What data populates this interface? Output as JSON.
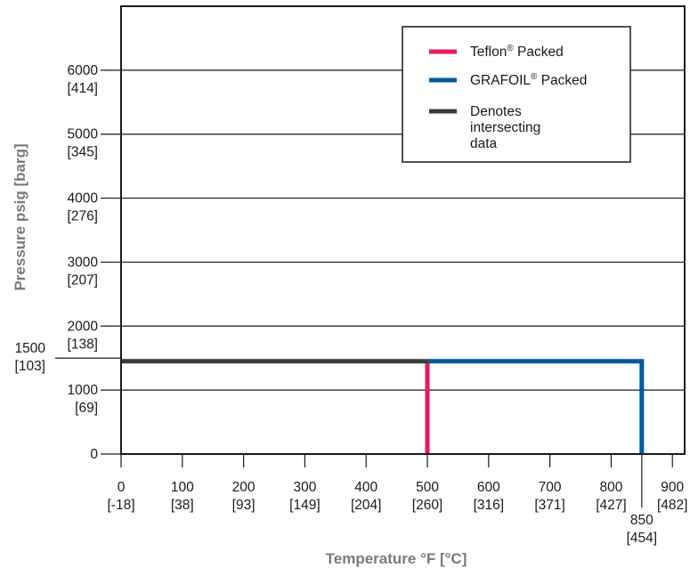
{
  "chart_data": {
    "type": "line",
    "xlabel": "Temperature °F [°C]",
    "ylabel": "Pressure psig [barg]",
    "xlim": [
      0,
      920
    ],
    "ylim": [
      0,
      7000
    ],
    "grid": "horizontal",
    "legend_position": "top-right",
    "x_ticks": [
      {
        "value": 0,
        "label": "0",
        "sub": "[-18]"
      },
      {
        "value": 100,
        "label": "100",
        "sub": "[38]"
      },
      {
        "value": 200,
        "label": "200",
        "sub": "[93]"
      },
      {
        "value": 300,
        "label": "300",
        "sub": "[149]"
      },
      {
        "value": 400,
        "label": "400",
        "sub": "[204]"
      },
      {
        "value": 500,
        "label": "500",
        "sub": "[260]"
      },
      {
        "value": 600,
        "label": "600",
        "sub": "[316]"
      },
      {
        "value": 700,
        "label": "700",
        "sub": "[371]"
      },
      {
        "value": 800,
        "label": "800",
        "sub": "[427]"
      },
      {
        "value": 900,
        "label": "900",
        "sub": "[482]"
      }
    ],
    "x_extra_tick": {
      "value": 850,
      "label": "850",
      "sub": "[454]"
    },
    "y_ticks": [
      {
        "value": 0,
        "label": "0",
        "sub": ""
      },
      {
        "value": 1000,
        "label": "1000",
        "sub": "[69]"
      },
      {
        "value": 2000,
        "label": "2000",
        "sub": "[138]"
      },
      {
        "value": 3000,
        "label": "3000",
        "sub": "[207]"
      },
      {
        "value": 4000,
        "label": "4000",
        "sub": "[276]"
      },
      {
        "value": 5000,
        "label": "5000",
        "sub": "[345]"
      },
      {
        "value": 6000,
        "label": "6000",
        "sub": "[414]"
      }
    ],
    "y_extra_tick": {
      "value": 1500,
      "label": "1500",
      "sub": "[103]"
    },
    "series": [
      {
        "name": "Teflon® Packed",
        "color": "#e8175d",
        "x": [
          500,
          500
        ],
        "y": [
          0,
          1450
        ]
      },
      {
        "name": "GRAFOIL® Packed",
        "color": "#005a9c",
        "x": [
          500,
          850,
          850
        ],
        "y": [
          1450,
          1450,
          0
        ]
      },
      {
        "name": "Denotes intersecting data",
        "color": "#3a3a3a",
        "x": [
          0,
          500
        ],
        "y": [
          1450,
          1450
        ]
      }
    ],
    "legend": [
      {
        "name": "Teflon",
        "sup": "®",
        "rest": " Packed",
        "color": "#e8175d"
      },
      {
        "name": "GRAFOIL",
        "sup": "®",
        "rest": " Packed",
        "color": "#005a9c"
      },
      {
        "name": "Denotes",
        "lines": [
          "intersecting",
          "data"
        ],
        "color": "#3a3a3a"
      }
    ]
  }
}
